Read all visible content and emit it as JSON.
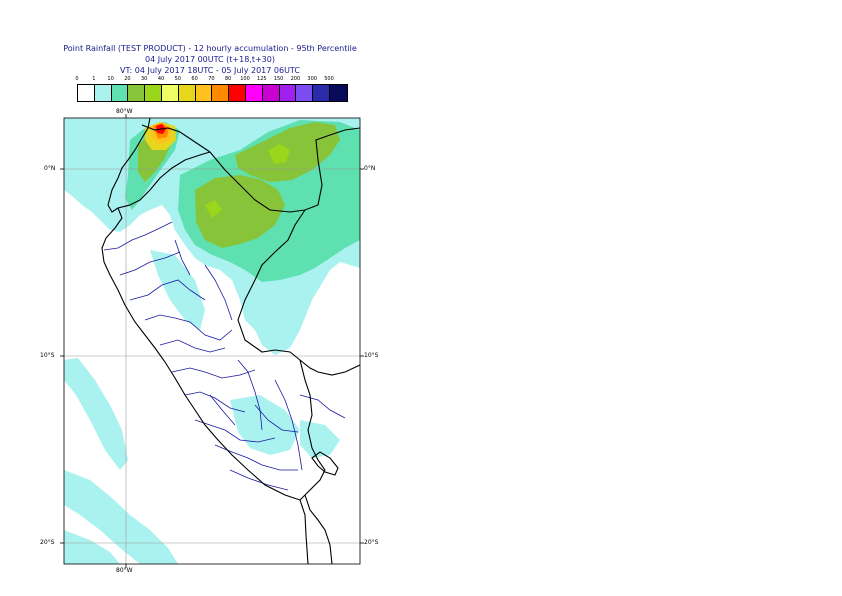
{
  "title": {
    "line1": "Point Rainfall (TEST PRODUCT) - 12 hourly accumulation - 95th Percentile",
    "line2": "04 July 2017 00UTC (t+18,t+30)",
    "line3": "VT: 04 July 2017 18UTC - 05 July 2017 06UTC"
  },
  "legend": {
    "thresholds": [
      "0",
      "1",
      "10",
      "20",
      "30",
      "40",
      "50",
      "60",
      "70",
      "80",
      "100",
      "125",
      "150",
      "200",
      "300",
      "500"
    ],
    "colors": [
      "#ffffff",
      "#aaf2f0",
      "#5ee0b0",
      "#88c43a",
      "#9ad61c",
      "#eeff66",
      "#e6d61c",
      "#ffc21c",
      "#ff8a00",
      "#ff0000",
      "#ff00ff",
      "#c800d0",
      "#a020f0",
      "#7b4cf0",
      "#2a2aaa",
      "#0a0a5a"
    ]
  },
  "axes": {
    "top_lon": "80°W",
    "bottom_lon": "80°W",
    "left_lat": [
      "0°N",
      "10°S",
      "20°S"
    ],
    "right_lat": [
      "0°N",
      "10°S",
      "20°S"
    ]
  },
  "colors": {
    "ocean_light": "#aaf2f0",
    "moderate": "#5ee0b0",
    "heavy": "#88c43a",
    "vheavy": "#9ad61c",
    "max": "#ff0000",
    "border": "#000000",
    "admin": "#1a1aa0",
    "grid": "#9a9a9a"
  }
}
